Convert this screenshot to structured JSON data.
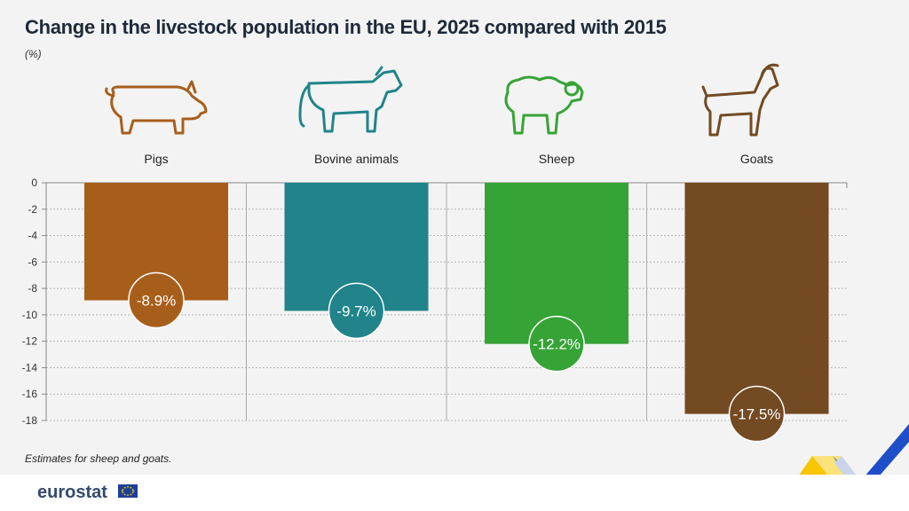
{
  "title": "Change in the livestock population in the EU, 2025 compared with 2015",
  "unit": "(%)",
  "note": "Estimates for sheep and goats.",
  "brand": "eurostat",
  "colors": {
    "pigs": "#a85e1b",
    "bovine": "#20848a",
    "sheep": "#36a336",
    "goats": "#734a22"
  },
  "chart_data": {
    "type": "bar",
    "categories": [
      "Pigs",
      "Bovine animals",
      "Sheep",
      "Goats"
    ],
    "values": [
      -8.9,
      -9.7,
      -12.2,
      -17.5
    ],
    "labels": [
      "-8.9%",
      "-9.7%",
      "-12.2%",
      "-17.5%"
    ],
    "ylim": [
      -18,
      0
    ],
    "yticks": [
      "0",
      "-2",
      "-4",
      "-6",
      "-8",
      "-10",
      "-12",
      "-14",
      "-16",
      "-18"
    ],
    "icons": [
      "pig-icon",
      "cow-icon",
      "sheep-icon",
      "goat-icon"
    ],
    "grid": true
  }
}
